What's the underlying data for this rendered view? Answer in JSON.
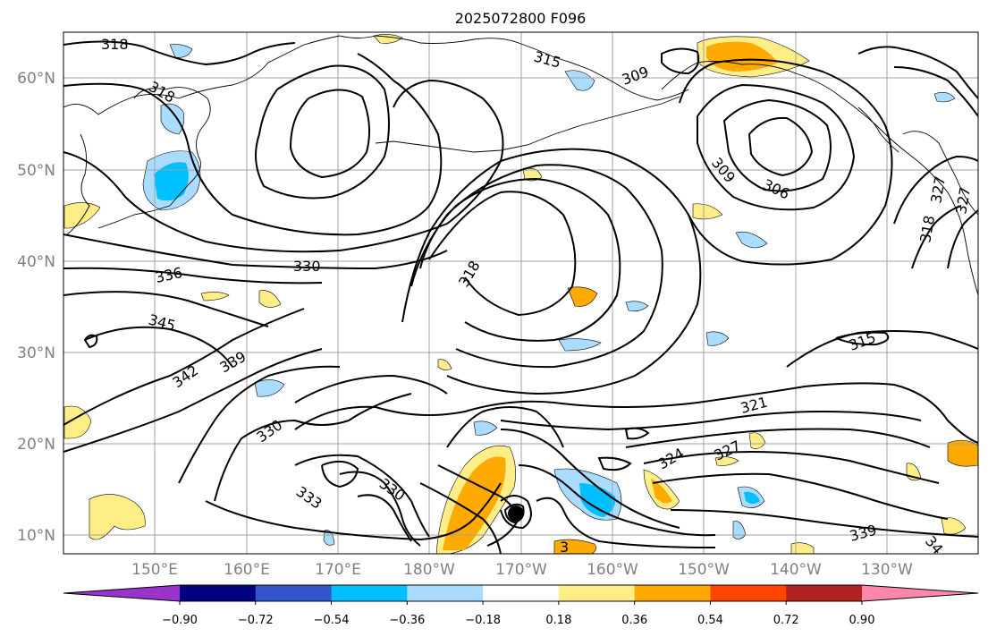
{
  "title": "2025072800 F096",
  "map": {
    "lon_range": [
      140,
      240
    ],
    "lat_range": [
      8,
      65
    ],
    "lat_ticks": [
      {
        "value": 10,
        "label": "10°N"
      },
      {
        "value": 20,
        "label": "20°N"
      },
      {
        "value": 30,
        "label": "30°N"
      },
      {
        "value": 40,
        "label": "40°N"
      },
      {
        "value": 50,
        "label": "50°N"
      },
      {
        "value": 60,
        "label": "60°N"
      }
    ],
    "lon_ticks": [
      {
        "value": 150,
        "label": "150°E"
      },
      {
        "value": 160,
        "label": "160°E"
      },
      {
        "value": 170,
        "label": "170°E"
      },
      {
        "value": 180,
        "label": "180°W"
      },
      {
        "value": 190,
        "label": "170°W"
      },
      {
        "value": 200,
        "label": "160°W"
      },
      {
        "value": 210,
        "label": "150°W"
      },
      {
        "value": 220,
        "label": "140°W"
      },
      {
        "value": 230,
        "label": "130°W"
      }
    ],
    "grid": true,
    "contour_labels": [
      "318",
      "318",
      "315",
      "309",
      "309",
      "306",
      "336",
      "330",
      "318",
      "345",
      "342",
      "339",
      "330",
      "333",
      "330",
      "321",
      "324",
      "327",
      "315",
      "318",
      "327",
      "327",
      "339",
      "34",
      "3"
    ]
  },
  "colorbar": {
    "ticks": [
      "−0.90",
      "−0.72",
      "−0.54",
      "−0.36",
      "−0.18",
      "0.18",
      "0.36",
      "0.54",
      "0.72",
      "0.90"
    ],
    "colors": [
      "#9933cc",
      "#000080",
      "#3355cc",
      "#00bfff",
      "#aadcff",
      "#ffffff",
      "#ffee88",
      "#ffaa00",
      "#ff4400",
      "#b22222",
      "#ff88aa"
    ]
  },
  "colors": {
    "gridline": "#a0a0a0",
    "contour": "#000000",
    "positive_light": "#ffee88",
    "positive_mid": "#ffaa00",
    "negative_light": "#aadcff",
    "negative_mid": "#00bfff"
  }
}
